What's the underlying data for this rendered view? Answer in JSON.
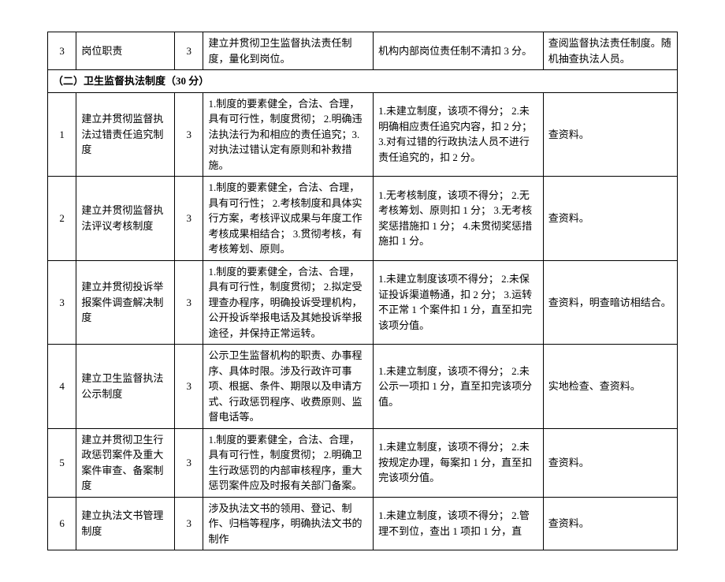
{
  "rows": [
    {
      "num": "3",
      "item": "岗位职责",
      "score": "3",
      "standard": "建立并贯彻卫生监督执法责任制度，量化到岗位。",
      "deduction": "机构内部岗位责任制不清扣 3 分。",
      "method": "查阅监督执法责任制度。随机抽查执法人员。"
    }
  ],
  "section_header": "（二）卫生监督执法制度（30 分）",
  "section_rows": [
    {
      "num": "1",
      "item": "建立并贯彻监督执法过错责任追究制度",
      "score": "3",
      "standard": "1.制度的要素健全，合法、合理，具有可行性，制度贯彻；\n2.明确违法执法行为和相应的责任追究；3.对执法过错认定有原则和补救措施。",
      "deduction": "1.未建立制度，该项不得分；\n2.未明确相应责任追究内容，扣 2 分；\n3.对有过错的行政执法人员不进行责任追究的，扣 2 分。",
      "method": "查资料。"
    },
    {
      "num": "2",
      "item": "建立并贯彻监督执法评议考核制度",
      "score": "3",
      "standard": "1.制度的要素健全，合法、合理，具有可行性；\n2.考核制度和具体实行方案，考核评议成果与年度工作考核成果相结合；\n3.贯彻考核，有考核筹划、原则。",
      "deduction": "1.无考核制度，该项不得分；\n2.无考核筹划、原则扣 1 分；\n3.无考核奖惩措施扣 1 分；\n4.未贯彻奖惩措施扣 1 分。",
      "method": "查资料。"
    },
    {
      "num": "3",
      "item": "建立并贯彻投诉举报案件调查解决制度",
      "score": "3",
      "standard": "1.制度的要素健全，合法、合理，具有可行性，制度贯彻；\n2.拟定受理查办程序，明确投诉受理机构，公开投诉举报电话及其她投诉举报途径，并保持正常运转。",
      "deduction": "1.未建立制度该项不得分；\n2.未保证投诉渠道畅通，扣 2 分；\n3.运转不正常 1 个案件扣 1 分，直至扣完该项分值。",
      "method": "查资料，明查暗访相结合。"
    },
    {
      "num": "4",
      "item": "建立卫生监督执法公示制度",
      "score": "3",
      "standard": "公示卫生监督机构的职责、办事程序、具体时限。涉及行政许可事项、根据、条件、期限以及申请方式、行政惩罚程序、收费原则、监督电话等。",
      "deduction": "1.未建立制度，该项不得分；\n2.未公示一项扣 1 分，直至扣完该项分值。",
      "method": "实地检查、查资料。"
    },
    {
      "num": "5",
      "item": "建立并贯彻卫生行政惩罚案件及重大案件审查、备案制度",
      "score": "3",
      "standard": "1.制度的要素健全，合法、合理，具有可行性，制度贯彻；\n2.明确卫生行政惩罚的内部审核程序，重大惩罚案件应及时报有关部门备案。",
      "deduction": "1.未建立制度，该项不得分；\n2.未按规定办理，每案扣 1 分，直至扣完该项分值。",
      "method": "查资料。"
    },
    {
      "num": "6",
      "item": "建立执法文书管理制度",
      "score": "3",
      "standard": "涉及执法文书的领用、登记、制作、归档等程序，明确执法文书的制作",
      "deduction": "1.未建立制度，该项不得分；\n2.管理不到位，查出 1 项扣 1 分，直",
      "method": "查资料。"
    }
  ]
}
